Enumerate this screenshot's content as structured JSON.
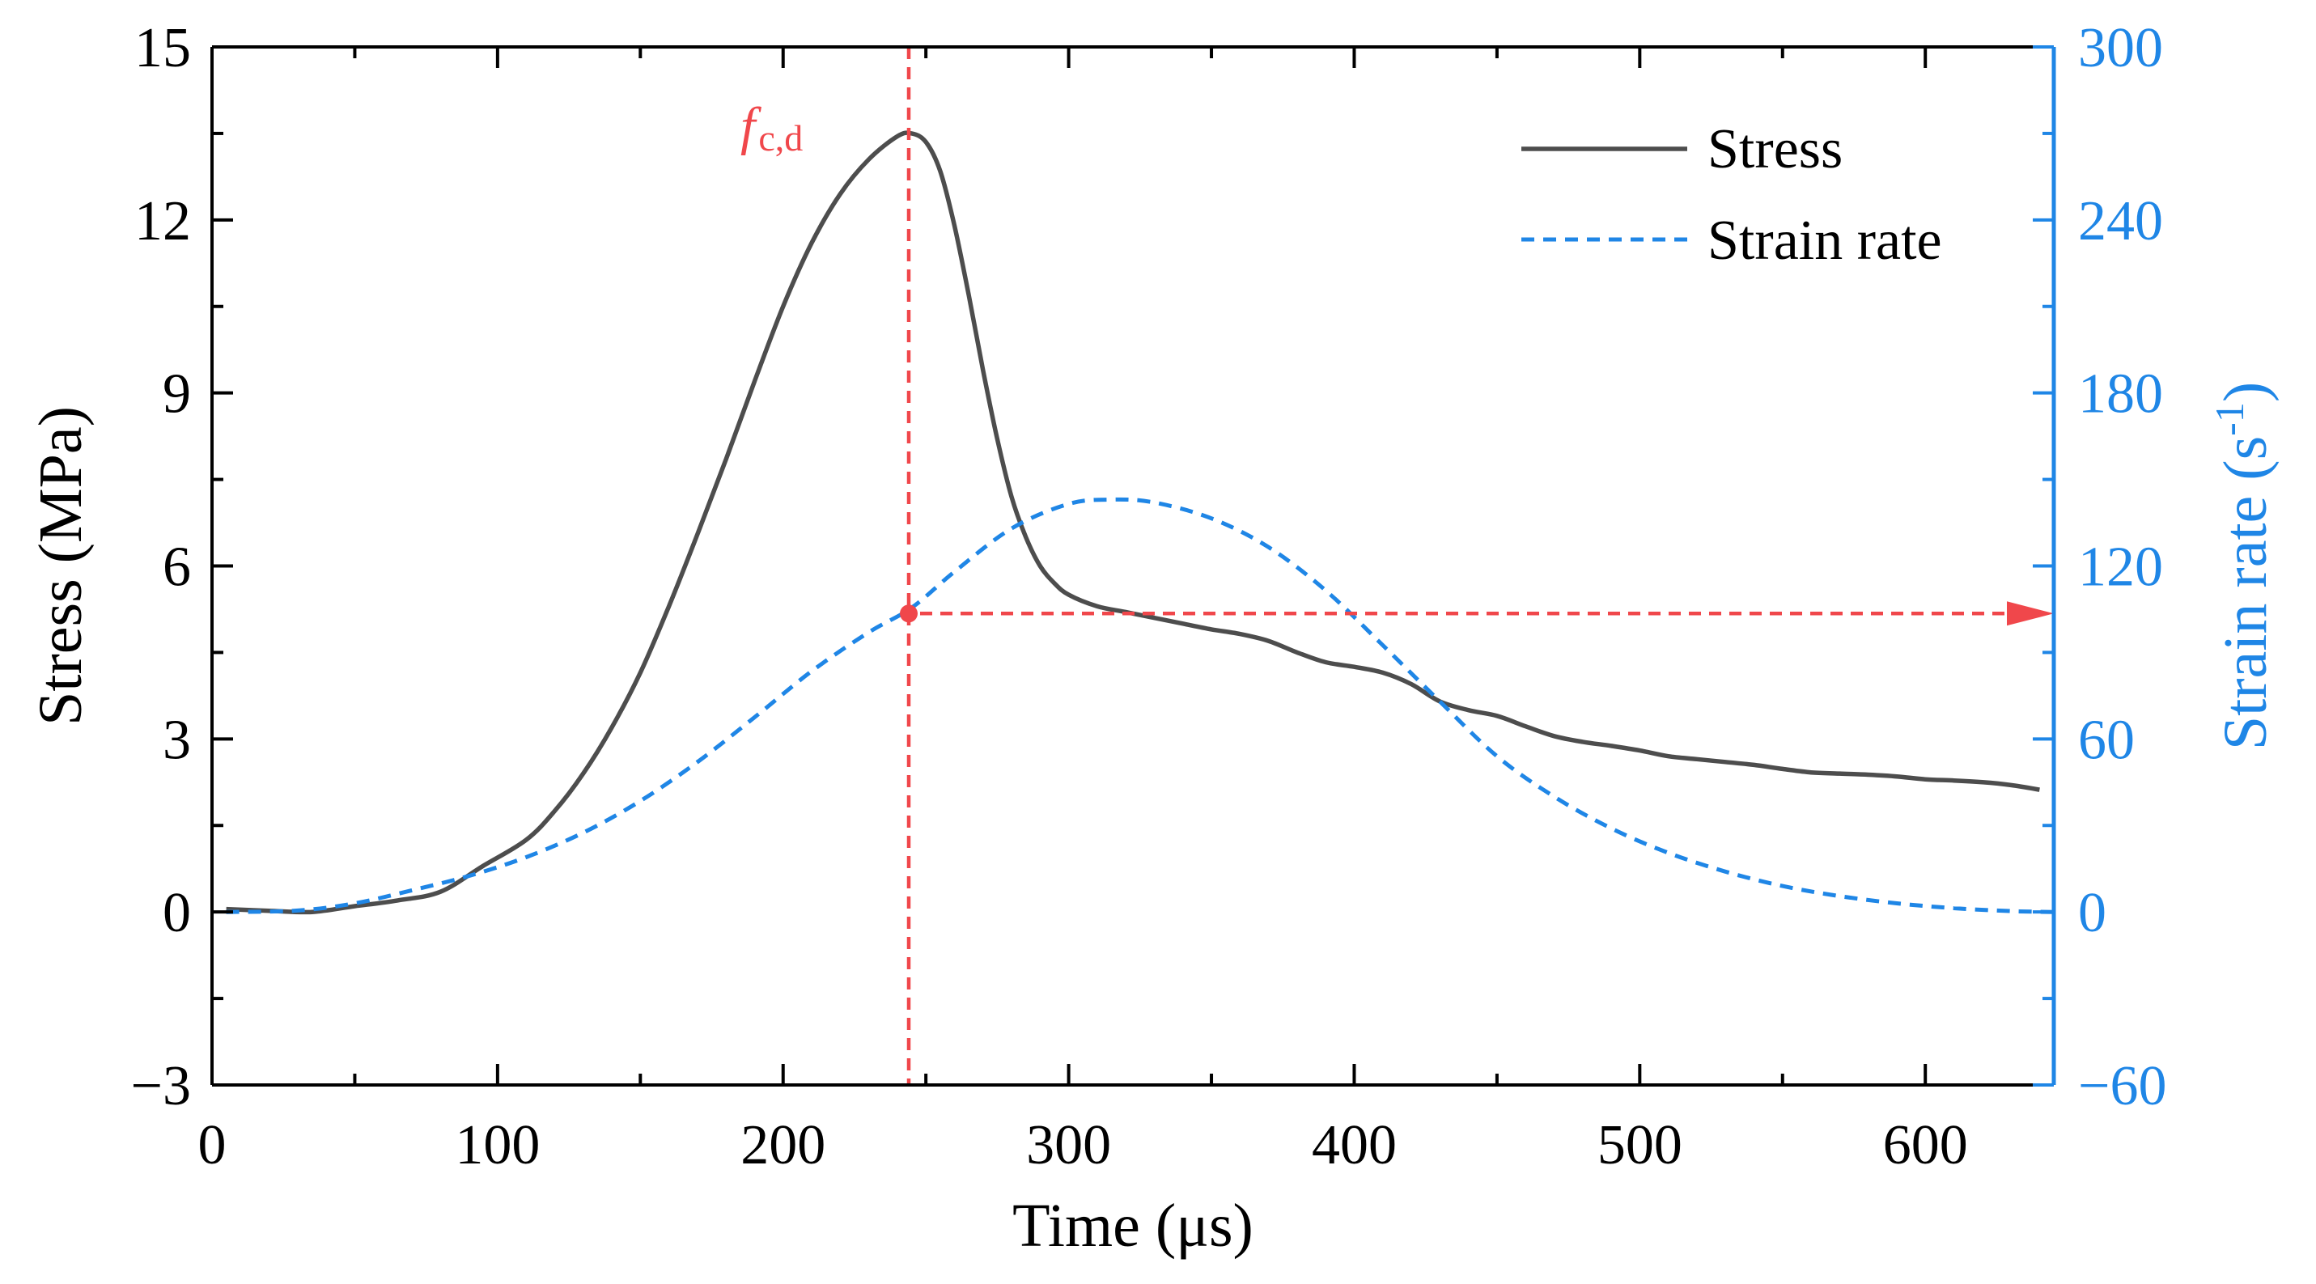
{
  "colors": {
    "left_axis": "#000000",
    "right_axis": "#1f86e6",
    "stress_line": "#4d4d4d",
    "strain_rate_line": "#1f86e6",
    "annotation": "#f0474b"
  },
  "chart_data": {
    "type": "line",
    "title": "",
    "xlabel": "Time (μs)",
    "ylabel_left": "Stress (MPa)",
    "ylabel_right_main": "Strain rate (s",
    "ylabel_right_sup": "-1",
    "ylabel_right_close": ")",
    "xlim": [
      0,
      645
    ],
    "ylim_left": [
      -3,
      15
    ],
    "ylim_right": [
      -60,
      300
    ],
    "x_ticks": [
      0,
      100,
      200,
      300,
      400,
      500,
      600
    ],
    "x_tick_labels": [
      "0",
      "100",
      "200",
      "300",
      "400",
      "500",
      "600"
    ],
    "y_left_ticks": [
      -3,
      0,
      3,
      6,
      9,
      12,
      15
    ],
    "y_left_tick_labels": [
      "−3",
      "0",
      "3",
      "6",
      "9",
      "12",
      "15"
    ],
    "y_right_ticks": [
      -60,
      0,
      60,
      120,
      180,
      240,
      300
    ],
    "y_right_tick_labels": [
      "−60",
      "0",
      "60",
      "120",
      "180",
      "240",
      "300"
    ],
    "legend_position": "top-right",
    "series": [
      {
        "name": "Stress",
        "axis": "left",
        "style": "solid",
        "x": [
          5,
          20,
          35,
          50,
          65,
          80,
          95,
          110,
          120,
          130,
          140,
          150,
          160,
          170,
          180,
          190,
          200,
          210,
          220,
          230,
          240,
          245,
          250,
          255,
          260,
          265,
          270,
          275,
          280,
          285,
          290,
          295,
          300,
          310,
          320,
          330,
          340,
          350,
          360,
          370,
          380,
          390,
          400,
          410,
          420,
          430,
          440,
          450,
          460,
          470,
          480,
          490,
          500,
          510,
          520,
          530,
          540,
          550,
          560,
          570,
          580,
          590,
          600,
          610,
          620,
          630,
          640
        ],
        "values": [
          0.05,
          0.02,
          0.0,
          0.1,
          0.2,
          0.35,
          0.8,
          1.25,
          1.75,
          2.4,
          3.2,
          4.15,
          5.3,
          6.55,
          7.85,
          9.2,
          10.5,
          11.6,
          12.45,
          13.05,
          13.45,
          13.5,
          13.35,
          12.85,
          11.9,
          10.7,
          9.4,
          8.2,
          7.2,
          6.5,
          6.0,
          5.7,
          5.5,
          5.3,
          5.2,
          5.1,
          5.0,
          4.9,
          4.82,
          4.7,
          4.5,
          4.33,
          4.25,
          4.15,
          3.95,
          3.65,
          3.5,
          3.4,
          3.22,
          3.05,
          2.95,
          2.88,
          2.8,
          2.7,
          2.65,
          2.6,
          2.55,
          2.48,
          2.42,
          2.4,
          2.38,
          2.35,
          2.3,
          2.28,
          2.25,
          2.2,
          2.12
        ]
      },
      {
        "name": "Strain rate",
        "axis": "right",
        "style": "dashed",
        "x": [
          5,
          30,
          50,
          70,
          90,
          110,
          130,
          150,
          170,
          190,
          210,
          230,
          245,
          260,
          280,
          300,
          315,
          330,
          350,
          370,
          390,
          410,
          430,
          450,
          470,
          490,
          510,
          530,
          550,
          570,
          590,
          610,
          630,
          645
        ],
        "values": [
          0.0,
          0.5,
          3.0,
          7.5,
          12.5,
          19.0,
          27.5,
          38.5,
          52.0,
          67.5,
          83.5,
          97.0,
          105.5,
          118.0,
          133.0,
          141.5,
          143.0,
          142.0,
          136.5,
          126.5,
          111.5,
          92.5,
          73.0,
          54.0,
          40.0,
          29.0,
          20.5,
          14.0,
          9.0,
          5.5,
          3.0,
          1.3,
          0.3,
          0.0
        ]
      }
    ],
    "annotations": {
      "peak_label_main": "f",
      "peak_label_sub": "c,d",
      "peak_time": 244,
      "strain_rate_at_peak": 103.5
    }
  }
}
